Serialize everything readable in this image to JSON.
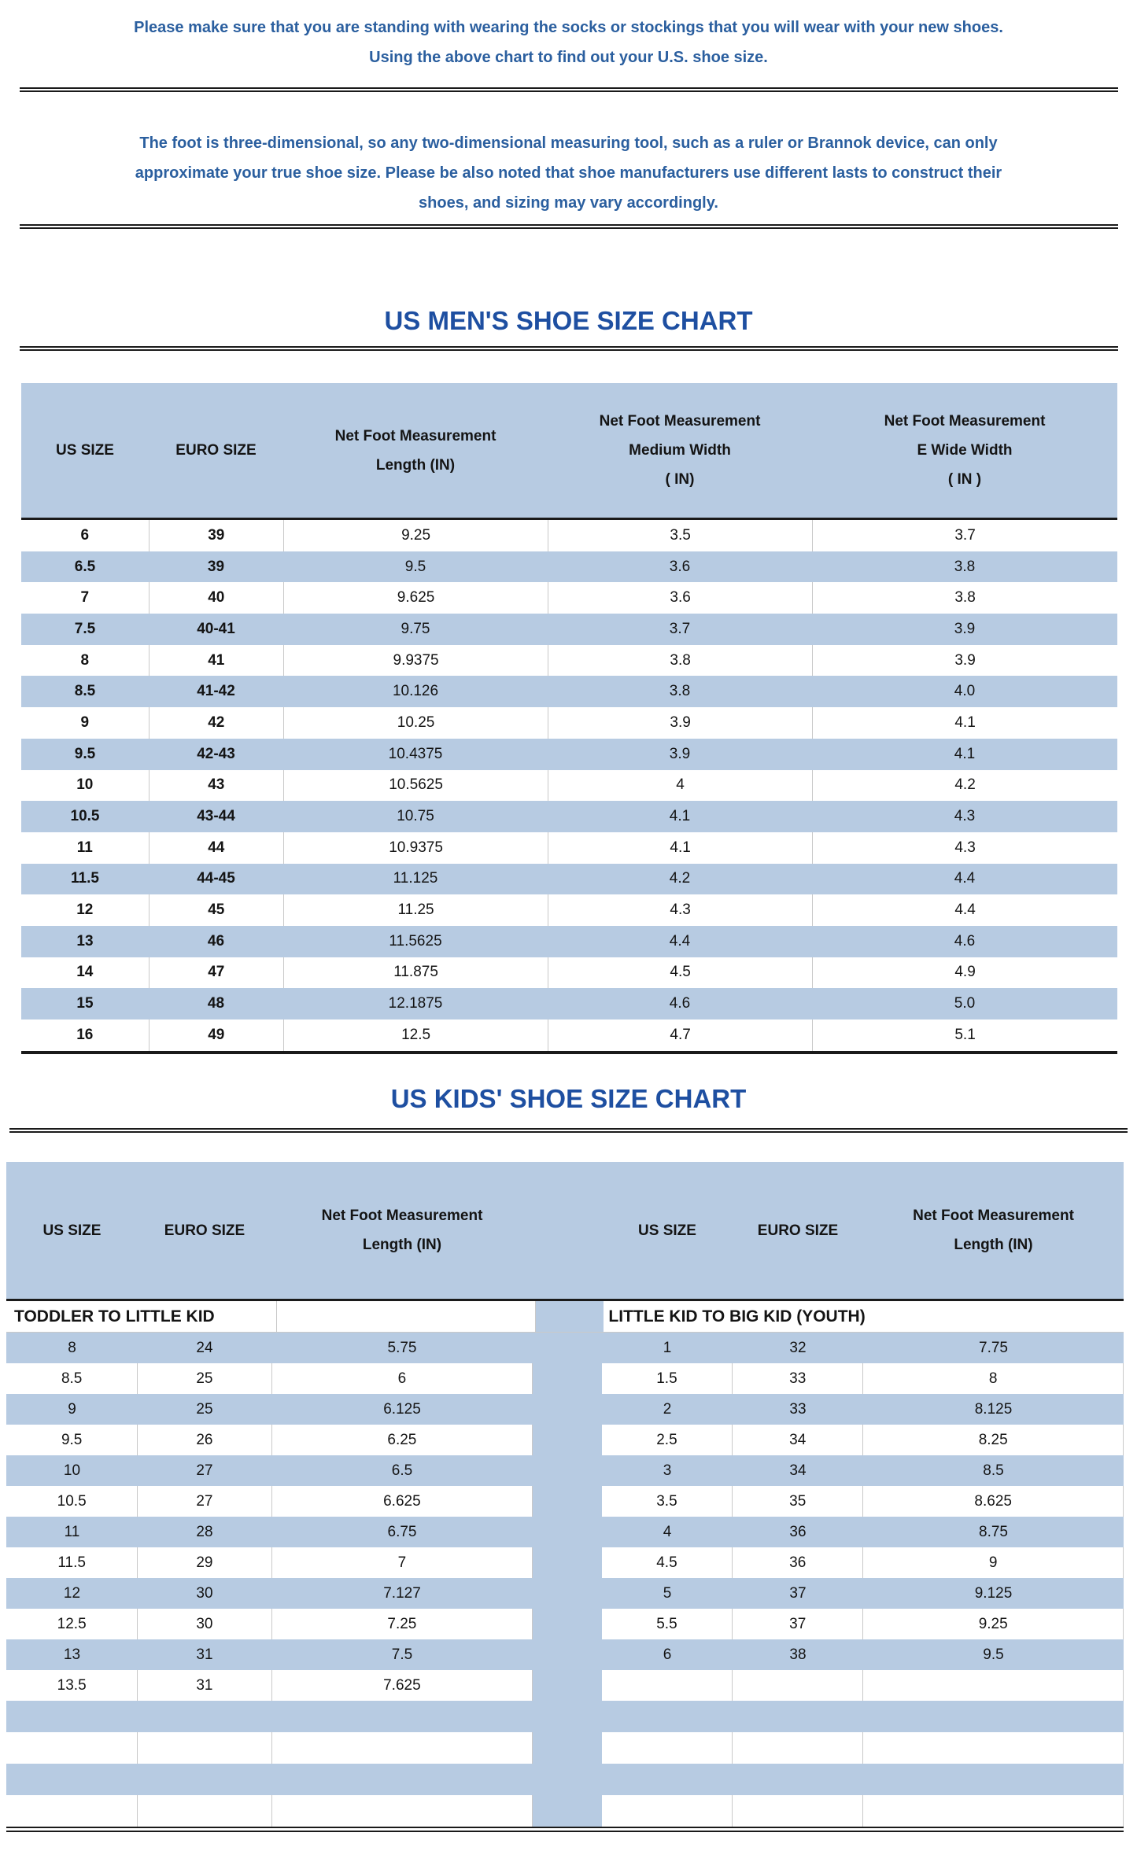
{
  "colors": {
    "blue_fill": "#b7cbe2",
    "title_blue": "#1e4fa1",
    "paragraph_blue": "#2b5f9f",
    "line_black": "#1a1a1a",
    "table_text": "#141414",
    "cell_border_gray": "#c9c9c9"
  },
  "intro": {
    "text": "Please make sure that you are standing with wearing the socks or stockings that you will wear with your new shoes.\nUsing the above chart to find out your U.S. shoe size."
  },
  "note": {
    "text": "The foot is three-dimensional, so any two-dimensional measuring tool, such as a ruler or Brannok device, can only\napproximate your true shoe size. Please be also noted that shoe manufacturers use different lasts to construct their\nshoes, and sizing may vary accordingly."
  },
  "mens_chart": {
    "title": "US MEN'S SHOE SIZE CHART",
    "headers": [
      "US SIZE",
      "EURO SIZE",
      "Net Foot Measurement\nLength (IN)",
      "Net Foot Measurement\nMedium Width\n（IN)",
      "Net Foot Measurement\nE Wide Width\n（IN）"
    ],
    "rows": [
      [
        "6",
        "39",
        "9.25",
        "3.5",
        "3.7"
      ],
      [
        "6.5",
        "39",
        "9.5",
        "3.6",
        "3.8"
      ],
      [
        "7",
        "40",
        "9.625",
        "3.6",
        "3.8"
      ],
      [
        "7.5",
        "40-41",
        "9.75",
        "3.7",
        "3.9"
      ],
      [
        "8",
        "41",
        "9.9375",
        "3.8",
        "3.9"
      ],
      [
        "8.5",
        "41-42",
        "10.126",
        "3.8",
        "4.0"
      ],
      [
        "9",
        "42",
        "10.25",
        "3.9",
        "4.1"
      ],
      [
        "9.5",
        "42-43",
        "10.4375",
        "3.9",
        "4.1"
      ],
      [
        "10",
        "43",
        "10.5625",
        "4",
        "4.2"
      ],
      [
        "10.5",
        "43-44",
        "10.75",
        "4.1",
        "4.3"
      ],
      [
        "11",
        "44",
        "10.9375",
        "4.1",
        "4.3"
      ],
      [
        "11.5",
        "44-45",
        "11.125",
        "4.2",
        "4.4"
      ],
      [
        "12",
        "45",
        "11.25",
        "4.3",
        "4.4"
      ],
      [
        "13",
        "46",
        "11.5625",
        "4.4",
        "4.6"
      ],
      [
        "14",
        "47",
        "11.875",
        "4.5",
        "4.9"
      ],
      [
        "15",
        "48",
        "12.1875",
        "4.6",
        "5.0"
      ],
      [
        "16",
        "49",
        "12.5",
        "4.7",
        "5.1"
      ]
    ]
  },
  "kids_chart": {
    "title": "US KIDS' SHOE SIZE CHART",
    "headers": [
      "US SIZE",
      "EURO SIZE",
      "Net Foot Measurement\nLength (IN)",
      "US SIZE",
      "EURO SIZE",
      "Net Foot Measurement\nLength (IN)"
    ],
    "left_section_label": "TODDLER TO LITTLE KID",
    "right_section_label": "LITTLE KID TO BIG KID (YOUTH)",
    "left_rows": [
      [
        "8",
        "24",
        "5.75"
      ],
      [
        "8.5",
        "25",
        "6"
      ],
      [
        "9",
        "25",
        "6.125"
      ],
      [
        "9.5",
        "26",
        "6.25"
      ],
      [
        "10",
        "27",
        "6.5"
      ],
      [
        "10.5",
        "27",
        "6.625"
      ],
      [
        "11",
        "28",
        "6.75"
      ],
      [
        "11.5",
        "29",
        "7"
      ],
      [
        "12",
        "30",
        "7.127"
      ],
      [
        "12.5",
        "30",
        "7.25"
      ],
      [
        "13",
        "31",
        "7.5"
      ],
      [
        "13.5",
        "31",
        "7.625"
      ]
    ],
    "right_rows": [
      [
        "1",
        "32",
        "7.75"
      ],
      [
        "1.5",
        "33",
        "8"
      ],
      [
        "2",
        "33",
        "8.125"
      ],
      [
        "2.5",
        "34",
        "8.25"
      ],
      [
        "3",
        "34",
        "8.5"
      ],
      [
        "3.5",
        "35",
        "8.625"
      ],
      [
        "4",
        "36",
        "8.75"
      ],
      [
        "4.5",
        "36",
        "9"
      ],
      [
        "5",
        "37",
        "9.125"
      ],
      [
        "5.5",
        "37",
        "9.25"
      ],
      [
        "6",
        "38",
        "9.5"
      ]
    ],
    "trailing_empty_rows": 4
  }
}
